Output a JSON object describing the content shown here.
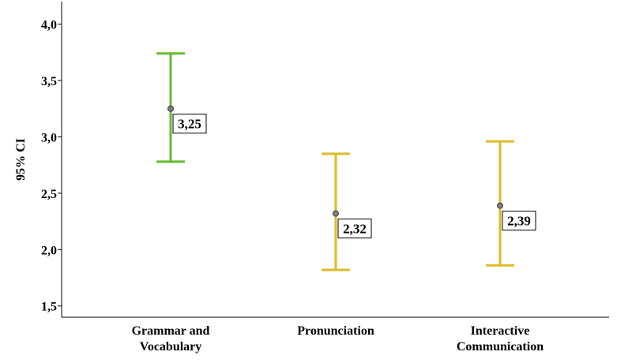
{
  "chart_data": {
    "type": "errorbar",
    "ylabel": "95% CI",
    "xlabel": "",
    "ylim": [
      1.4,
      4.2
    ],
    "yticks": [
      1.5,
      2.0,
      2.5,
      3.0,
      3.5,
      4.0
    ],
    "ytick_labels": [
      "1,5",
      "2,0",
      "2,5",
      "3,0",
      "3,5",
      "4,0"
    ],
    "grid": false,
    "categories": [
      {
        "label_lines": [
          "Grammar and",
          "Vocabulary"
        ],
        "mean": 3.25,
        "mean_label": "3,25",
        "ci_low": 2.78,
        "ci_high": 3.74,
        "color": "#66bb33"
      },
      {
        "label_lines": [
          "Pronunciation"
        ],
        "mean": 2.32,
        "mean_label": "2,32",
        "ci_low": 1.82,
        "ci_high": 2.85,
        "color": "#dbbb29"
      },
      {
        "label_lines": [
          "Interactive",
          "Communication"
        ],
        "mean": 2.39,
        "mean_label": "2,39",
        "ci_low": 1.86,
        "ci_high": 2.96,
        "color": "#dbbb29"
      }
    ]
  }
}
